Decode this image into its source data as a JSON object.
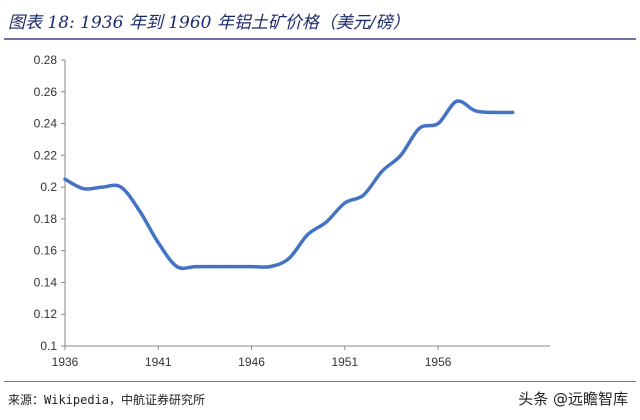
{
  "title": "图表 18:  1936 年到 1960 年铝土矿价格（美元/磅）",
  "source": "来源：Wikipedia，中航证券研究所",
  "watermark": "头条 @远瞻智库",
  "colors": {
    "line": "#4472c4",
    "title": "#1d2a6b",
    "rule": "#6b74a4"
  },
  "chart_data": {
    "type": "line",
    "title": "",
    "xlabel": "",
    "ylabel": "",
    "xlim": [
      1936,
      1962
    ],
    "ylim": [
      0.1,
      0.28
    ],
    "grid": false,
    "x_ticks": [
      1936,
      1941,
      1946,
      1951,
      1956
    ],
    "x_tick_labels": [
      "1936",
      "1941",
      "1946",
      "1951",
      "1956"
    ],
    "y_ticks": [
      0.1,
      0.12,
      0.14,
      0.16,
      0.18,
      0.2,
      0.22,
      0.24,
      0.26,
      0.28
    ],
    "y_tick_labels": [
      "0.1",
      "0.12",
      "0.14",
      "0.16",
      "0.18",
      "0.2",
      "0.22",
      "0.24",
      "0.26",
      "0.28"
    ],
    "series": [
      {
        "x": [
          1936,
          1937,
          1938,
          1939,
          1940,
          1941,
          1942,
          1943,
          1944,
          1945,
          1946,
          1947,
          1948,
          1949,
          1950,
          1951,
          1952,
          1953,
          1954,
          1955,
          1956,
          1957,
          1958,
          1959,
          1960
        ],
        "values": [
          0.205,
          0.199,
          0.2,
          0.2,
          0.185,
          0.165,
          0.15,
          0.15,
          0.15,
          0.15,
          0.15,
          0.15,
          0.155,
          0.17,
          0.178,
          0.19,
          0.195,
          0.21,
          0.22,
          0.237,
          0.24,
          0.254,
          0.248,
          0.247,
          0.247
        ]
      }
    ]
  }
}
